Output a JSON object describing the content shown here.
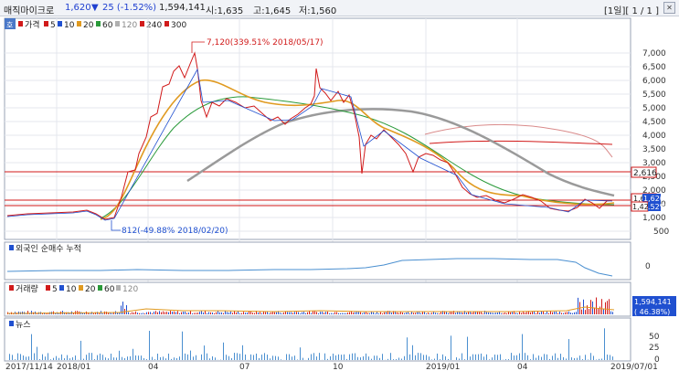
{
  "header": {
    "stock_name": "매직마이크로",
    "price": "1,620",
    "change_arrow": "▼",
    "change": "25 (-1.52%)",
    "volume": "1,594,141",
    "open": "시:1,635",
    "high": "고:1,645",
    "low": "저:1,560",
    "pager": "[1일][ 1 / 1 ]"
  },
  "price_panel": {
    "badge": "호",
    "legend": [
      {
        "label": "가격",
        "color": "#d11a1a"
      },
      {
        "label": "5",
        "color": "#d11a1a"
      },
      {
        "label": "10",
        "color": "#2050d0"
      },
      {
        "label": "20",
        "color": "#e09a20"
      },
      {
        "label": "60",
        "color": "#2a9a3a"
      },
      {
        "label": "120",
        "color": "#9a9a9a"
      },
      {
        "label": "240",
        "color": "#d11a1a"
      },
      {
        "label": "300",
        "color": "#d11a1a"
      }
    ],
    "axis": [
      "7,000",
      "6,500",
      "6,000",
      "5,500",
      "5,000",
      "4,500",
      "4,000",
      "3,500",
      "3,000",
      "2,500",
      "2,000",
      "1,500",
      "1,000",
      "500"
    ],
    "high_annotation": "7,120(339.51% 2018/05/17)",
    "low_annotation": "812(-49.88% 2018/02/20)",
    "tag_2616": "2,616",
    "tag_1620": "1,620",
    "tag_1680": "1,680",
    "tag_1429": "1,429",
    "tag_pct": ".52%"
  },
  "foreign_panel": {
    "label": "외국인 순매수 누적",
    "axis_zero": "0"
  },
  "volume_panel": {
    "legend": [
      {
        "label": "거래량",
        "color": "#d11a1a"
      },
      {
        "label": "5",
        "color": "#d11a1a"
      },
      {
        "label": "10",
        "color": "#2050d0"
      },
      {
        "label": "20",
        "color": "#e09a20"
      },
      {
        "label": "60",
        "color": "#2a9a3a"
      },
      {
        "label": "120",
        "color": "#9a9a9a"
      }
    ],
    "tag_volume": "1,594,141",
    "tag_volume_pct": "( 46.38%)",
    "axis_zero": "0"
  },
  "news_panel": {
    "label": "뉴스",
    "axis": [
      "50",
      "25",
      "0"
    ]
  },
  "x_axis": [
    "2017/11/14",
    "2018/01",
    "04",
    "07",
    "10",
    "2019/01",
    "04",
    "2019/07/01"
  ]
}
